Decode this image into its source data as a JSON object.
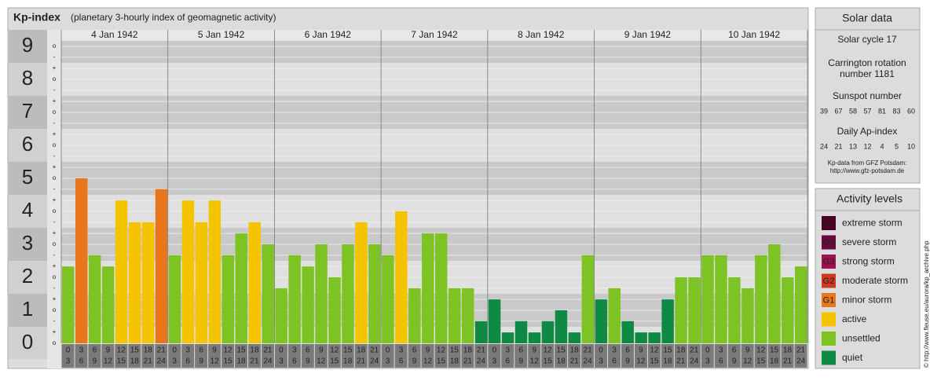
{
  "chart_data": {
    "type": "bar",
    "title": "Kp-index",
    "subtitle": "(planetary 3-hourly index of geomagnetic activity)",
    "days": [
      "4 Jan 1942",
      "5 Jan 1942",
      "6 Jan 1942",
      "7 Jan 1942",
      "8 Jan 1942",
      "9 Jan 1942",
      "10 Jan 1942"
    ],
    "hours": [
      [
        "0",
        "3"
      ],
      [
        "3",
        "6"
      ],
      [
        "6",
        "9"
      ],
      [
        "9",
        "12"
      ],
      [
        "12",
        "15"
      ],
      [
        "15",
        "18"
      ],
      [
        "18",
        "21"
      ],
      [
        "21",
        "24"
      ]
    ],
    "values": [
      2.33,
      5,
      2.67,
      2.33,
      4.33,
      3.67,
      3.67,
      4.67,
      2.67,
      4.33,
      3.67,
      4.33,
      2.67,
      3.33,
      3.67,
      3,
      1.67,
      2.67,
      2.33,
      3,
      2,
      3,
      3.67,
      3,
      2.67,
      4,
      1.67,
      3.33,
      3.33,
      1.67,
      1.67,
      0.67,
      1.33,
      0.33,
      0.67,
      0.33,
      0.67,
      1,
      0.33,
      2.67,
      1.33,
      1.67,
      0.67,
      0.33,
      0.33,
      1.33,
      2,
      2,
      2.67,
      2.67,
      2,
      1.67,
      2.67,
      3,
      2,
      2.33
    ],
    "colors": [
      "#7dc324",
      "#e8761c",
      "#7dc324",
      "#7dc324",
      "#f5c400",
      "#f5c400",
      "#f5c400",
      "#e8761c",
      "#7dc324",
      "#f5c400",
      "#f5c400",
      "#f5c400",
      "#7dc324",
      "#7dc324",
      "#f5c400",
      "#7dc324",
      "#7dc324",
      "#7dc324",
      "#7dc324",
      "#7dc324",
      "#7dc324",
      "#7dc324",
      "#f5c400",
      "#7dc324",
      "#7dc324",
      "#f5c400",
      "#7dc324",
      "#7dc324",
      "#7dc324",
      "#7dc324",
      "#7dc324",
      "#0e8a45",
      "#0e8a45",
      "#0e8a45",
      "#0e8a45",
      "#0e8a45",
      "#0e8a45",
      "#0e8a45",
      "#0e8a45",
      "#7dc324",
      "#0e8a45",
      "#7dc324",
      "#0e8a45",
      "#0e8a45",
      "#0e8a45",
      "#0e8a45",
      "#7dc324",
      "#7dc324",
      "#7dc324",
      "#7dc324",
      "#7dc324",
      "#7dc324",
      "#7dc324",
      "#7dc324",
      "#7dc324",
      "#7dc324"
    ],
    "ylim": [
      0,
      9
    ],
    "yticks": [
      0,
      1,
      2,
      3,
      4,
      5,
      6,
      7,
      8,
      9
    ],
    "minor_ticks": [
      {
        "value": 0,
        "label": "o"
      },
      {
        "value": 0.33,
        "label": "+"
      },
      {
        "value": 0.67,
        "label": "-"
      },
      {
        "value": 1,
        "label": "o"
      },
      {
        "value": 1.33,
        "label": "+"
      },
      {
        "value": 1.67,
        "label": "-"
      },
      {
        "value": 2,
        "label": "o"
      },
      {
        "value": 2.33,
        "label": "+"
      },
      {
        "value": 2.67,
        "label": "-"
      },
      {
        "value": 3,
        "label": "o"
      },
      {
        "value": 3.33,
        "label": "+"
      },
      {
        "value": 3.67,
        "label": "-"
      },
      {
        "value": 4,
        "label": "o"
      },
      {
        "value": 4.33,
        "label": "+"
      },
      {
        "value": 4.67,
        "label": "-"
      },
      {
        "value": 5,
        "label": "o"
      },
      {
        "value": 5.33,
        "label": "+"
      },
      {
        "value": 5.67,
        "label": "-"
      },
      {
        "value": 6,
        "label": "o"
      },
      {
        "value": 6.33,
        "label": "+"
      },
      {
        "value": 6.67,
        "label": "-"
      },
      {
        "value": 7,
        "label": "o"
      },
      {
        "value": 7.33,
        "label": "+"
      },
      {
        "value": 7.67,
        "label": "-"
      },
      {
        "value": 8,
        "label": "o"
      },
      {
        "value": 8.33,
        "label": "+"
      },
      {
        "value": 8.67,
        "label": "-"
      },
      {
        "value": 9,
        "label": "o"
      }
    ],
    "grid": true
  },
  "solar_data": {
    "title": "Solar data",
    "cycle": "Solar cycle 17",
    "carrington": [
      "Carrington rotation",
      "number 1181"
    ],
    "sunspot_title": "Sunspot number",
    "sunspot_numbers": [
      39,
      67,
      58,
      57,
      81,
      83,
      60
    ],
    "ap_title": "Daily Ap-index",
    "ap_values": [
      24,
      21,
      13,
      12,
      4,
      5,
      10
    ],
    "source": [
      "Kp-data from GFZ Potsdam:",
      "http://www.gfz-potsdam.de"
    ]
  },
  "activity_levels": {
    "title": "Activity levels",
    "items": [
      {
        "badge": "G5",
        "label": "extreme storm",
        "color": "#4a0020"
      },
      {
        "badge": "G4",
        "label": "severe storm",
        "color": "#6b0a3e"
      },
      {
        "badge": "G3",
        "label": "strong storm",
        "color": "#a0124e"
      },
      {
        "badge": "G2",
        "label": "moderate storm",
        "color": "#d0381f"
      },
      {
        "badge": "G1",
        "label": "minor storm",
        "color": "#e8761c"
      },
      {
        "badge": "",
        "label": "active",
        "color": "#f5c400"
      },
      {
        "badge": "",
        "label": "unsettled",
        "color": "#7dc324"
      },
      {
        "badge": "",
        "label": "quiet",
        "color": "#0e8a45"
      }
    ]
  },
  "credit": "© http://www.fleuse.eu/aurora/kp_archive.php"
}
